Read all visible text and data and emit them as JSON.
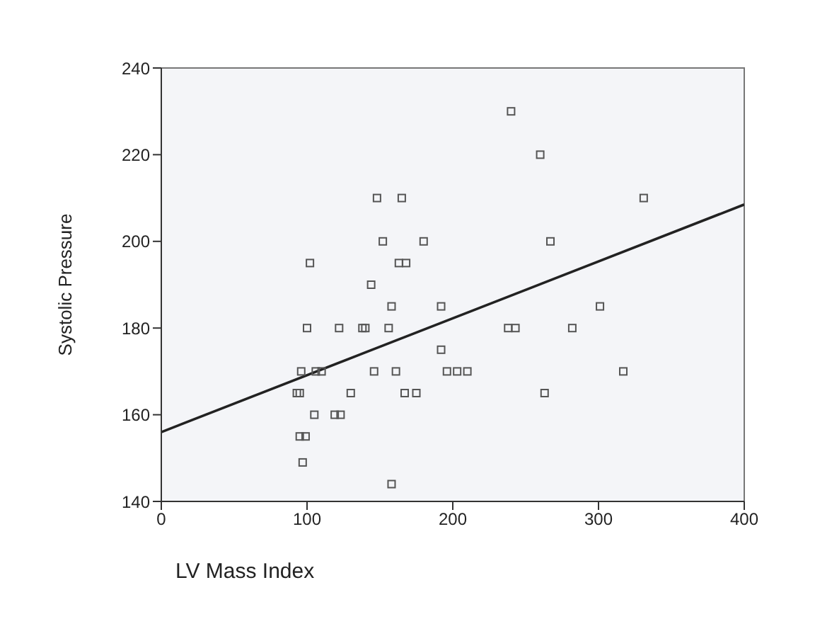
{
  "chart_data": {
    "type": "scatter",
    "xlabel": "LV Mass Index",
    "ylabel": "Systolic Pressure",
    "xlim": [
      0,
      400
    ],
    "ylim": [
      140,
      240
    ],
    "xticks": [
      0,
      100,
      200,
      300,
      400
    ],
    "yticks": [
      140,
      160,
      180,
      200,
      220,
      240
    ],
    "marker": "square",
    "series": [
      {
        "color": "#555555",
        "x": [
          240,
          260,
          331,
          267,
          148,
          165,
          152,
          180,
          102,
          163,
          168,
          144,
          158,
          192,
          100,
          122,
          138,
          140,
          156,
          192,
          96,
          106,
          110,
          146,
          161,
          196,
          203,
          210,
          317,
          93,
          95,
          130,
          167,
          175,
          263,
          105,
          119,
          123,
          95,
          99,
          97,
          158,
          301,
          238,
          243,
          282
        ],
        "values": [
          230,
          220,
          210,
          200,
          210,
          210,
          200,
          200,
          195,
          195,
          195,
          190,
          185,
          185,
          180,
          180,
          180,
          180,
          180,
          175,
          170,
          170,
          170,
          170,
          170,
          170,
          170,
          170,
          170,
          165,
          165,
          165,
          165,
          165,
          165,
          160,
          160,
          160,
          155,
          155,
          149,
          144,
          185,
          180,
          180,
          180
        ]
      },
      {
        "type": "line",
        "color": "#222222",
        "x": [
          0,
          400
        ],
        "values": [
          156,
          208.5
        ],
        "marker": "none"
      }
    ]
  }
}
